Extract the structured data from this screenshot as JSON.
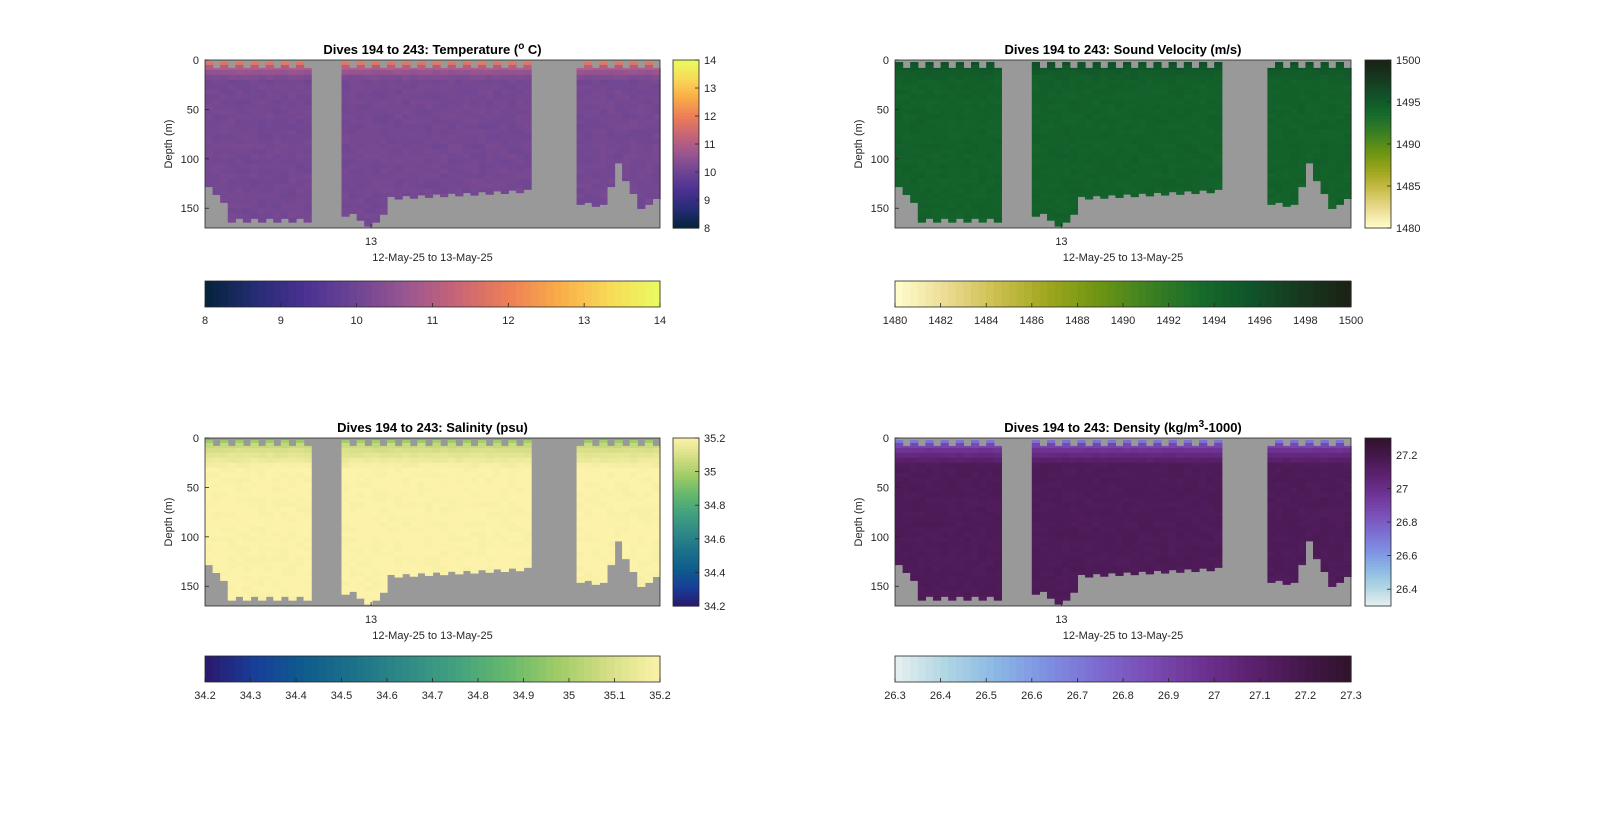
{
  "chart_data": [
    {
      "type": "heatmap",
      "title_main": "Dives 194 to 243: Temperature (",
      "title_sup": "o",
      "title_end": " C)",
      "ylabel": "Depth (m)",
      "xlabel": "12-May-25 to 13-May-25",
      "xticks": [
        "13"
      ],
      "ylim": [
        0,
        170
      ],
      "yticks": [
        0,
        50,
        100,
        150
      ],
      "colorbar": {
        "min": 8,
        "max": 14,
        "ticks": [
          8,
          9,
          10,
          11,
          12,
          13,
          14
        ],
        "colormap": "thermal"
      },
      "profile": {
        "surface_value": 12.1,
        "surface_depth": 10,
        "deep_value": 10.1
      },
      "missing_color": "#999999"
    },
    {
      "type": "heatmap",
      "title_main": "Dives 194 to 243: Sound Velocity (m/s)",
      "title_sup": "",
      "title_end": "",
      "ylabel": "Depth (m)",
      "xlabel": "12-May-25 to 13-May-25",
      "xticks": [
        "13"
      ],
      "ylim": [
        0,
        170
      ],
      "yticks": [
        0,
        50,
        100,
        150
      ],
      "colorbar": {
        "min": 1480,
        "max": 1500,
        "ticks": [
          1480,
          1482,
          1484,
          1486,
          1488,
          1490,
          1492,
          1494,
          1496,
          1498,
          1500
        ],
        "right_ticks": [
          1480,
          1485,
          1490,
          1495,
          1500
        ],
        "colormap": "speed"
      },
      "profile": {
        "surface_value": 1496.2,
        "surface_depth": 15,
        "deep_value": 1494.3
      },
      "missing_color": "#999999"
    },
    {
      "type": "heatmap",
      "title_main": "Dives 194 to 243: Salinity (psu)",
      "title_sup": "",
      "title_end": "",
      "ylabel": "Depth (m)",
      "xlabel": "12-May-25 to 13-May-25",
      "xticks": [
        "13"
      ],
      "ylim": [
        0,
        170
      ],
      "yticks": [
        0,
        50,
        100,
        150
      ],
      "colorbar": {
        "min": 34.2,
        "max": 35.2,
        "ticks": [
          34.2,
          34.3,
          34.4,
          34.5,
          34.6,
          34.7,
          34.8,
          34.9,
          35,
          35.1,
          35.2
        ],
        "right_ticks": [
          34.2,
          34.4,
          34.6,
          34.8,
          35,
          35.2
        ],
        "colormap": "haline"
      },
      "profile": {
        "surface_value": 34.95,
        "surface_depth": 22,
        "deep_value": 35.2
      },
      "missing_color": "#999999"
    },
    {
      "type": "heatmap",
      "title_main": "Dives 194 to 243: Density (kg/m",
      "title_sup": "3",
      "title_end": "-1000)",
      "ylabel": "Depth (m)",
      "xlabel": "12-May-25 to 13-May-25",
      "xticks": [
        "13"
      ],
      "ylim": [
        0,
        170
      ],
      "yticks": [
        0,
        50,
        100,
        150
      ],
      "colorbar": {
        "min": 26.3,
        "max": 27.3,
        "ticks": [
          26.3,
          26.4,
          26.5,
          26.6,
          26.7,
          26.8,
          26.9,
          27,
          27.1,
          27.2,
          27.3
        ],
        "right_ticks": [
          26.4,
          26.6,
          26.8,
          27,
          27.2
        ],
        "colormap": "dense"
      },
      "profile": {
        "surface_value": 26.65,
        "surface_depth": 18,
        "deep_value": 27.15
      },
      "missing_color": "#999999"
    }
  ]
}
